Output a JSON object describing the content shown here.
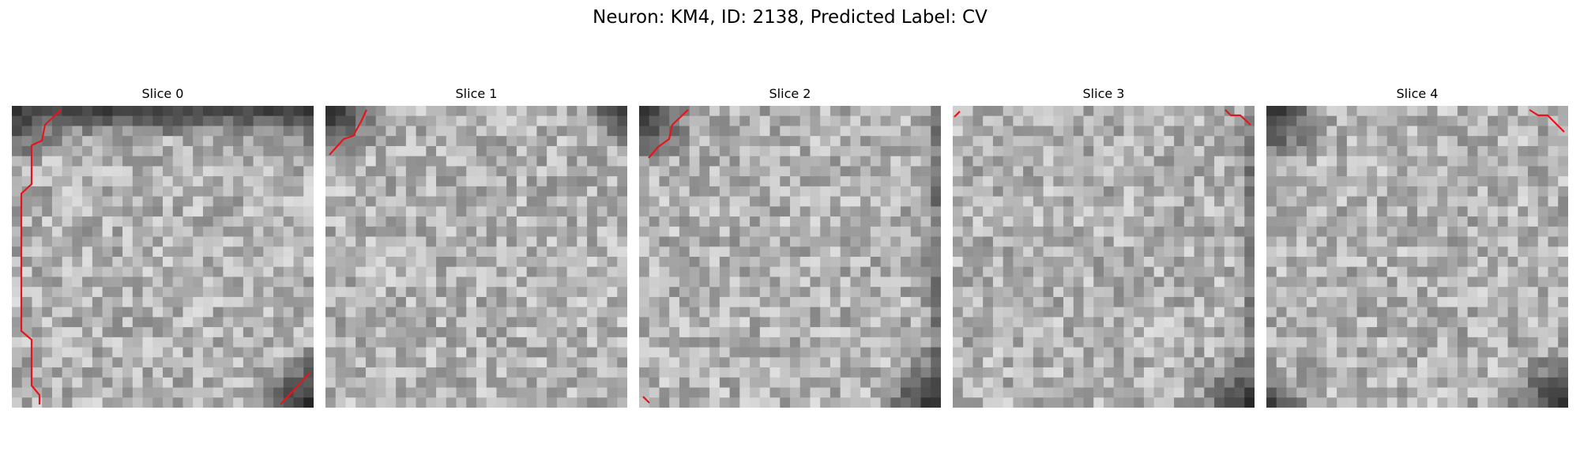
{
  "title": "Neuron: KM4, ID: 2138, Predicted Label: CV",
  "colors": {
    "contour": "#e8141b",
    "background": "#ffffff"
  },
  "slices": [
    {
      "label": "Slice 0",
      "dark_regions": [
        "top-left",
        "top-edge",
        "top-right",
        "bottom-right"
      ]
    },
    {
      "label": "Slice 1",
      "dark_regions": [
        "top-left",
        "top-right"
      ]
    },
    {
      "label": "Slice 2",
      "dark_regions": [
        "top-left",
        "right-edge",
        "bottom-right"
      ]
    },
    {
      "label": "Slice 3",
      "dark_regions": [
        "bottom-right",
        "right-edge"
      ]
    },
    {
      "label": "Slice 4",
      "dark_regions": [
        "top-left",
        "bottom-left",
        "bottom-right"
      ]
    }
  ]
}
